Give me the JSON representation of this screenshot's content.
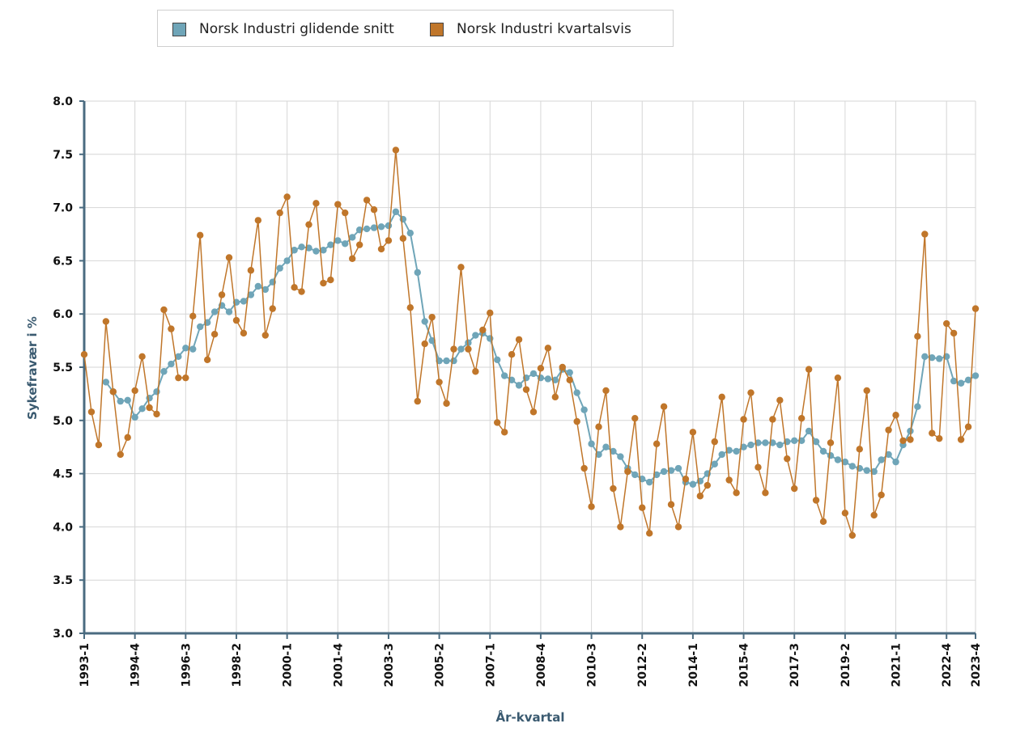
{
  "chart_data": {
    "type": "line",
    "xlabel": "År-kvartal",
    "ylabel": "Sykefravær i %",
    "ylim": [
      3.0,
      8.0
    ],
    "yticks": [
      "3.0",
      "3.5",
      "4.0",
      "4.5",
      "5.0",
      "5.5",
      "6.0",
      "6.5",
      "7.0",
      "7.5",
      "8.0"
    ],
    "x_tick_labels": [
      "1993-1",
      "1994-4",
      "1996-3",
      "1998-2",
      "2000-1",
      "2001-4",
      "2003-3",
      "2005-2",
      "2007-1",
      "2008-4",
      "2010-3",
      "2012-2",
      "2014-1",
      "2015-4",
      "2017-3",
      "2019-2",
      "2021-1",
      "2022-4",
      "2023-4"
    ],
    "x_start": "1993-1",
    "x_end": "2023-4",
    "grid": true,
    "legend_position": "top",
    "series": [
      {
        "name": "Norsk Industri glidende snitt",
        "color": "#6fa5b8",
        "values": [
          null,
          null,
          null,
          5.36,
          5.27,
          5.18,
          5.19,
          5.03,
          5.11,
          5.21,
          5.27,
          5.46,
          5.53,
          5.6,
          5.68,
          5.67,
          5.88,
          5.92,
          6.02,
          6.08,
          6.02,
          6.11,
          6.12,
          6.18,
          6.26,
          6.23,
          6.3,
          6.43,
          6.5,
          6.6,
          6.63,
          6.62,
          6.59,
          6.6,
          6.65,
          6.69,
          6.66,
          6.72,
          6.79,
          6.8,
          6.81,
          6.82,
          6.83,
          6.96,
          6.89,
          6.76,
          6.39,
          5.93,
          5.75,
          5.56,
          5.56,
          5.56,
          5.67,
          5.73,
          5.8,
          5.82,
          5.77,
          5.57,
          5.42,
          5.38,
          5.33,
          5.4,
          5.44,
          5.4,
          5.39,
          5.38,
          5.48,
          5.45,
          5.26,
          5.1,
          4.78,
          4.68,
          4.75,
          4.71,
          4.66,
          4.55,
          4.49,
          4.45,
          4.42,
          4.49,
          4.52,
          4.53,
          4.55,
          4.42,
          4.4,
          4.43,
          4.5,
          4.59,
          4.68,
          4.72,
          4.71,
          4.75,
          4.77,
          4.79,
          4.79,
          4.79,
          4.77,
          4.8,
          4.81,
          4.81,
          4.9,
          4.8,
          4.71,
          4.67,
          4.63,
          4.61,
          4.57,
          4.55,
          4.53,
          4.52,
          4.63,
          4.68,
          4.61,
          4.77,
          4.9,
          5.13,
          5.6,
          5.59,
          5.58,
          5.6,
          5.37,
          5.35,
          5.38,
          5.42
        ]
      },
      {
        "name": "Norsk Industri kvartalsvis",
        "color": "#c0762a",
        "values": [
          5.62,
          5.08,
          4.77,
          5.93,
          5.27,
          4.68,
          4.84,
          5.28,
          5.6,
          5.12,
          5.06,
          6.04,
          5.86,
          5.4,
          5.4,
          5.98,
          6.74,
          5.57,
          5.81,
          6.18,
          6.53,
          5.94,
          5.82,
          6.41,
          6.88,
          5.8,
          6.05,
          6.95,
          7.1,
          6.25,
          6.21,
          6.84,
          7.04,
          6.29,
          6.32,
          7.03,
          6.95,
          6.52,
          6.65,
          7.07,
          6.98,
          6.61,
          6.69,
          7.54,
          6.71,
          6.06,
          5.18,
          5.72,
          5.97,
          5.36,
          5.16,
          5.67,
          6.44,
          5.67,
          5.46,
          5.85,
          6.01,
          4.98,
          4.89,
          5.62,
          5.76,
          5.29,
          5.08,
          5.49,
          5.68,
          5.22,
          5.5,
          5.38,
          4.99,
          4.55,
          4.19,
          4.94,
          5.28,
          4.36,
          4.0,
          4.52,
          5.02,
          4.18,
          3.94,
          4.78,
          5.13,
          4.21,
          4.0,
          4.45,
          4.89,
          4.29,
          4.39,
          4.8,
          5.22,
          4.44,
          4.32,
          5.01,
          5.26,
          4.56,
          4.32,
          5.01,
          5.19,
          4.64,
          4.36,
          5.02,
          5.48,
          4.25,
          4.05,
          4.79,
          5.4,
          4.13,
          3.92,
          4.73,
          5.28,
          4.11,
          4.3,
          4.91,
          5.05,
          4.81,
          4.82,
          5.79,
          6.75,
          4.88,
          4.83,
          5.91,
          5.82,
          4.82,
          4.94,
          6.05
        ]
      }
    ]
  }
}
